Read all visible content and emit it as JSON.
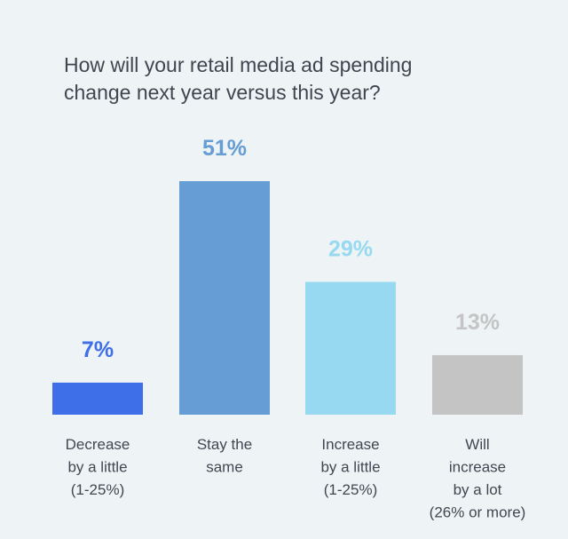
{
  "title_lines": [
    "How will your retail media ad spending",
    "change next year versus this year?"
  ],
  "chart_data": {
    "type": "bar",
    "title": "How will your retail media ad spending change next year versus this year?",
    "xlabel": "",
    "ylabel": "",
    "ylim": [
      0,
      51
    ],
    "grid": false,
    "legend": "none",
    "categories": [
      [
        "Decrease",
        "by a little",
        "(1-25%)"
      ],
      [
        "Stay the",
        "same"
      ],
      [
        "Increase",
        "by a little",
        "(1-25%)"
      ],
      [
        "Will",
        "increase",
        "by a lot",
        "(26% or more)"
      ]
    ],
    "values": [
      7,
      51,
      29,
      13
    ],
    "value_labels": [
      "7%",
      "51%",
      "29%",
      "13%"
    ],
    "colors": [
      "#3f6fe8",
      "#659dd4",
      "#96d9f0",
      "#c4c4c4"
    ],
    "label_colors": [
      "#3f6fe8",
      "#659dd4",
      "#96d9f0",
      "#c4c4c4"
    ]
  }
}
